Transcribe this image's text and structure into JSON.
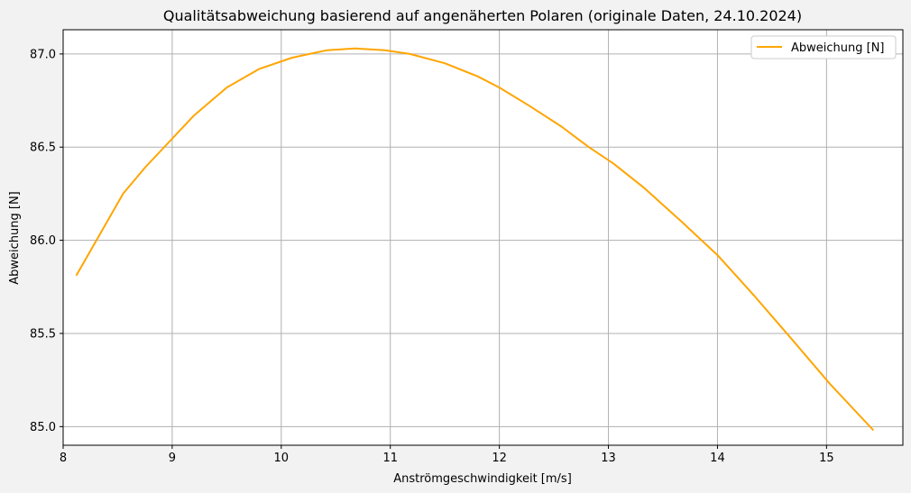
{
  "chart_data": {
    "type": "line",
    "title": "Qualitätsabweichung basierend auf angenäherten Polaren (originale Daten, 24.10.2024)",
    "xlabel": "Anströmgeschwindigkeit [m/s]",
    "ylabel": "Abweichung [N]",
    "xlim": [
      8.0,
      15.7
    ],
    "ylim": [
      84.9,
      87.13
    ],
    "xticks": [
      8,
      9,
      10,
      11,
      12,
      13,
      14,
      15
    ],
    "xtick_labels": [
      "8",
      "9",
      "10",
      "11",
      "12",
      "13",
      "14",
      "15"
    ],
    "yticks": [
      85.0,
      85.5,
      86.0,
      86.5,
      87.0
    ],
    "ytick_labels": [
      "85.0",
      "85.5",
      "86.0",
      "86.5",
      "87.0"
    ],
    "grid": true,
    "legend_position": "top-right",
    "series": [
      {
        "name": "Abweichung [N]",
        "color": "#ffa500",
        "x": [
          8.12,
          8.55,
          8.75,
          9.2,
          9.5,
          9.8,
          10.1,
          10.42,
          10.68,
          10.95,
          11.18,
          11.5,
          11.8,
          12.0,
          12.28,
          12.57,
          12.82,
          13.05,
          13.33,
          13.67,
          14.0,
          14.34,
          14.68,
          15.03,
          15.43
        ],
        "y": [
          85.81,
          86.25,
          86.39,
          86.67,
          86.82,
          86.92,
          86.98,
          87.02,
          87.03,
          87.02,
          87.0,
          86.95,
          86.88,
          86.82,
          86.72,
          86.61,
          86.5,
          86.41,
          86.28,
          86.1,
          85.92,
          85.7,
          85.47,
          85.23,
          84.98
        ]
      }
    ]
  }
}
